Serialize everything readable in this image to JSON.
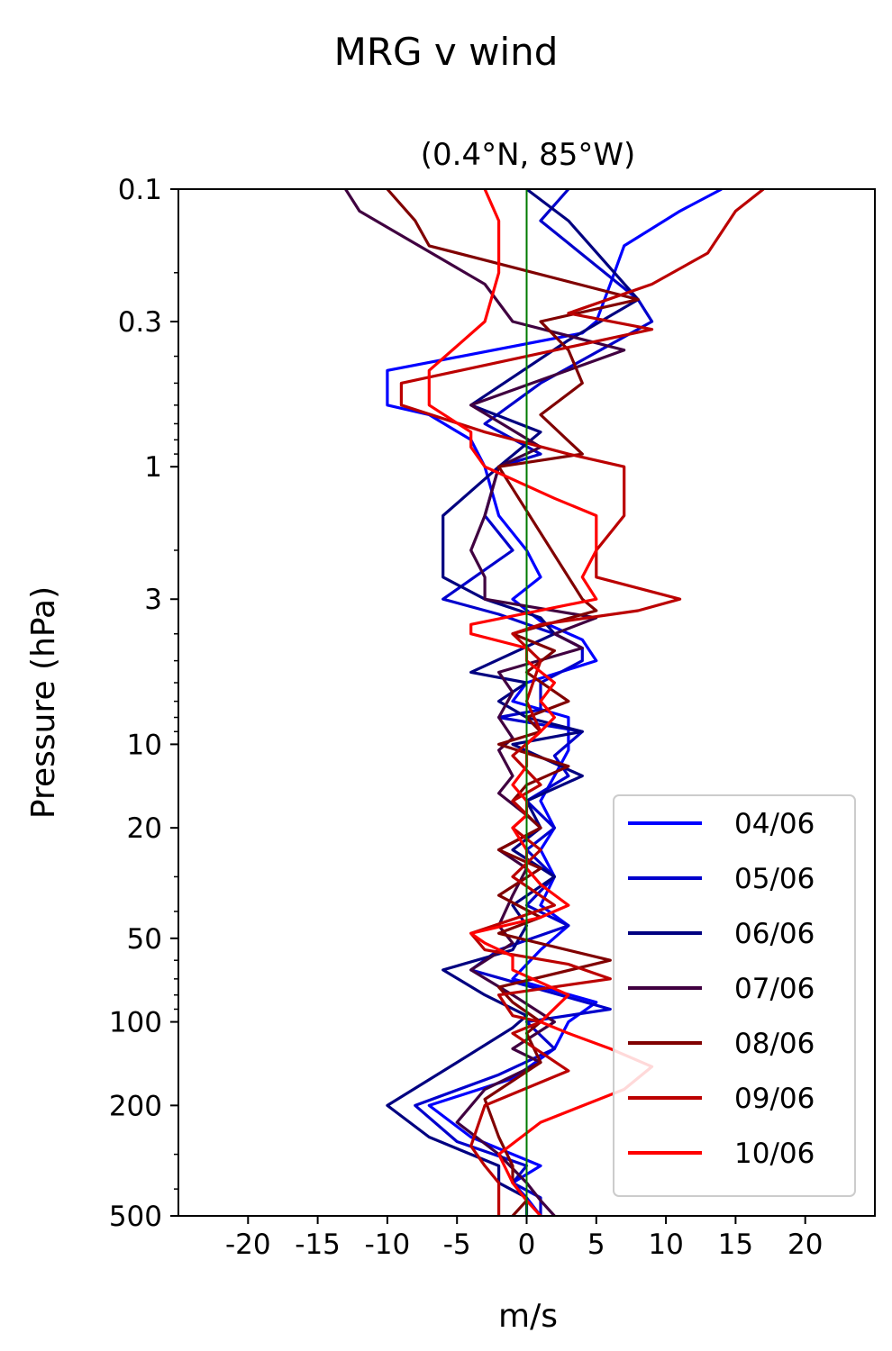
{
  "chart_data": {
    "type": "line",
    "title": "MRG v wind",
    "subtitle": "(0.4°N, 85°W)",
    "xlabel": "m/s",
    "ylabel": "Pressure (hPa)",
    "xlim": [
      -25,
      25
    ],
    "ylim": [
      500,
      0.1
    ],
    "yscale": "log",
    "x_ticks": [
      -20,
      -15,
      -10,
      -5,
      0,
      5,
      10,
      15,
      20
    ],
    "x_tick_labels": [
      "-20",
      "-15",
      "-10",
      "-5",
      "0",
      "5",
      "10",
      "15",
      "20"
    ],
    "y_ticks": [
      0.1,
      0.3,
      1,
      3,
      10,
      20,
      50,
      100,
      200,
      500
    ],
    "y_tick_labels": [
      "0.1",
      "0.3",
      "1",
      "3",
      "10",
      "20",
      "50",
      "100",
      "200",
      "500"
    ],
    "zero_line": {
      "x": 0,
      "color": "#007a00"
    },
    "legend": {
      "position": "lower-right"
    },
    "grid": false,
    "series": [
      {
        "name": "04/06",
        "color": "#0000ff",
        "points": [
          [
            14,
            0.1
          ],
          [
            11,
            0.12
          ],
          [
            7,
            0.16
          ],
          [
            6,
            0.22
          ],
          [
            5,
            0.3
          ],
          [
            4,
            0.33
          ],
          [
            -10,
            0.45
          ],
          [
            -10,
            0.6
          ],
          [
            -7,
            0.65
          ],
          [
            -4,
            0.8
          ],
          [
            -3,
            1.0
          ],
          [
            -2,
            1.5
          ],
          [
            0,
            2.0
          ],
          [
            1,
            2.5
          ],
          [
            -1,
            3.0
          ],
          [
            1,
            3.6
          ],
          [
            4,
            4.2
          ],
          [
            5,
            5.0
          ],
          [
            0,
            6.0
          ],
          [
            -1,
            7.0
          ],
          [
            3,
            8.0
          ],
          [
            3,
            10.5
          ],
          [
            2,
            13
          ],
          [
            1,
            16
          ],
          [
            2,
            20
          ],
          [
            1,
            24
          ],
          [
            2,
            30
          ],
          [
            1,
            38
          ],
          [
            3,
            45
          ],
          [
            1,
            55
          ],
          [
            -1,
            70
          ],
          [
            5,
            85
          ],
          [
            3,
            100
          ],
          [
            2,
            125
          ],
          [
            -1,
            160
          ],
          [
            -7,
            200
          ],
          [
            -4,
            260
          ],
          [
            1,
            330
          ],
          [
            -1,
            380
          ],
          [
            0,
            430
          ],
          [
            1,
            500
          ]
        ]
      },
      {
        "name": "05/06",
        "color": "#0000cc",
        "points": [
          [
            3,
            0.1
          ],
          [
            1,
            0.13
          ],
          [
            8,
            0.25
          ],
          [
            9,
            0.3
          ],
          [
            1,
            0.5
          ],
          [
            -3,
            0.7
          ],
          [
            1,
            0.9
          ],
          [
            -2,
            1.0
          ],
          [
            -3,
            1.5
          ],
          [
            -1,
            2.0
          ],
          [
            -6,
            3.0
          ],
          [
            -2,
            3.4
          ],
          [
            2,
            4.0
          ],
          [
            4,
            4.5
          ],
          [
            4,
            5.0
          ],
          [
            1,
            6.0
          ],
          [
            1,
            7.5
          ],
          [
            -2,
            8.0
          ],
          [
            4,
            9.0
          ],
          [
            2,
            11
          ],
          [
            3,
            13
          ],
          [
            0,
            16
          ],
          [
            2,
            20
          ],
          [
            0,
            24
          ],
          [
            2,
            30
          ],
          [
            0,
            38
          ],
          [
            3,
            45
          ],
          [
            -2,
            55
          ],
          [
            -4,
            65
          ],
          [
            6,
            90
          ],
          [
            0,
            100
          ],
          [
            2,
            125
          ],
          [
            -2,
            155
          ],
          [
            -8,
            200
          ],
          [
            -5,
            270
          ],
          [
            0,
            330
          ],
          [
            -1,
            380
          ],
          [
            1,
            430
          ],
          [
            1,
            500
          ]
        ]
      },
      {
        "name": "06/06",
        "color": "#000080",
        "points": [
          [
            0,
            0.1
          ],
          [
            3,
            0.13
          ],
          [
            8,
            0.25
          ],
          [
            3,
            0.35
          ],
          [
            -4,
            0.6
          ],
          [
            1,
            0.75
          ],
          [
            -2,
            1.0
          ],
          [
            -6,
            1.5
          ],
          [
            -6,
            2.5
          ],
          [
            -3,
            3.0
          ],
          [
            1,
            3.5
          ],
          [
            2,
            4.0
          ],
          [
            -4,
            5.5
          ],
          [
            0,
            6.0
          ],
          [
            -2,
            7.0
          ],
          [
            0,
            8.0
          ],
          [
            4,
            9.0
          ],
          [
            -1,
            10
          ],
          [
            4,
            13
          ],
          [
            0,
            16
          ],
          [
            1,
            20
          ],
          [
            -1,
            24
          ],
          [
            2,
            30
          ],
          [
            -1,
            38
          ],
          [
            0,
            45
          ],
          [
            -1,
            55
          ],
          [
            -6,
            65
          ],
          [
            -3,
            80
          ],
          [
            0,
            95
          ],
          [
            -1,
            105
          ],
          [
            -5,
            140
          ],
          [
            -10,
            200
          ],
          [
            -7,
            260
          ],
          [
            -2,
            330
          ],
          [
            -2,
            380
          ],
          [
            0,
            430
          ],
          [
            0,
            500
          ]
        ]
      },
      {
        "name": "07/06",
        "color": "#400040",
        "points": [
          [
            -13,
            0.1
          ],
          [
            -12,
            0.12
          ],
          [
            -3,
            0.22
          ],
          [
            -1,
            0.3
          ],
          [
            7,
            0.38
          ],
          [
            -4,
            0.6
          ],
          [
            1,
            0.85
          ],
          [
            -2,
            1.0
          ],
          [
            -3,
            1.5
          ],
          [
            -4,
            2.0
          ],
          [
            -3,
            2.5
          ],
          [
            -3,
            3.0
          ],
          [
            5,
            3.5
          ],
          [
            2,
            4.0
          ],
          [
            4,
            4.5
          ],
          [
            -2,
            5.5
          ],
          [
            -1,
            6.5
          ],
          [
            -2,
            8.0
          ],
          [
            -1,
            9.5
          ],
          [
            -2,
            10.5
          ],
          [
            -1,
            13
          ],
          [
            -2,
            15
          ],
          [
            0,
            18
          ],
          [
            1,
            20
          ],
          [
            -2,
            24
          ],
          [
            0,
            28
          ],
          [
            -1,
            35
          ],
          [
            -2,
            45
          ],
          [
            -1,
            52
          ],
          [
            -4,
            65
          ],
          [
            -1,
            80
          ],
          [
            2,
            100
          ],
          [
            -1,
            125
          ],
          [
            1,
            140
          ],
          [
            -3,
            175
          ],
          [
            -5,
            230
          ],
          [
            -2,
            300
          ],
          [
            0,
            380
          ],
          [
            1,
            440
          ],
          [
            2,
            500
          ]
        ]
      },
      {
        "name": "08/06",
        "color": "#800000",
        "points": [
          [
            -10,
            0.1
          ],
          [
            -8,
            0.13
          ],
          [
            -7,
            0.16
          ],
          [
            8,
            0.25
          ],
          [
            1,
            0.3
          ],
          [
            3,
            0.38
          ],
          [
            4,
            0.5
          ],
          [
            1,
            0.65
          ],
          [
            4,
            0.9
          ],
          [
            -2,
            1.0
          ],
          [
            4,
            3.0
          ],
          [
            5,
            3.3
          ],
          [
            -1,
            4.0
          ],
          [
            2,
            4.6
          ],
          [
            0,
            5.5
          ],
          [
            3,
            7.0
          ],
          [
            0,
            8.0
          ],
          [
            1,
            9.0
          ],
          [
            -2,
            10
          ],
          [
            3,
            12
          ],
          [
            0,
            14
          ],
          [
            -1,
            16
          ],
          [
            1,
            20
          ],
          [
            -2,
            24
          ],
          [
            1,
            28
          ],
          [
            -2,
            35
          ],
          [
            1,
            42
          ],
          [
            -2,
            48
          ],
          [
            6,
            60
          ],
          [
            -2,
            75
          ],
          [
            -1,
            85
          ],
          [
            1,
            100
          ],
          [
            0,
            110
          ],
          [
            1,
            140
          ],
          [
            -3,
            190
          ],
          [
            -2,
            260
          ],
          [
            -1,
            330
          ],
          [
            -1,
            380
          ],
          [
            0,
            440
          ],
          [
            -1,
            500
          ]
        ]
      },
      {
        "name": "09/06",
        "color": "#bb0000",
        "points": [
          [
            17,
            0.1
          ],
          [
            15,
            0.12
          ],
          [
            13,
            0.17
          ],
          [
            9,
            0.22
          ],
          [
            3,
            0.28
          ],
          [
            9,
            0.32
          ],
          [
            -9,
            0.5
          ],
          [
            -9,
            0.6
          ],
          [
            -3,
            0.75
          ],
          [
            3,
            0.9
          ],
          [
            7,
            1.0
          ],
          [
            7,
            1.5
          ],
          [
            5,
            2.0
          ],
          [
            5,
            2.5
          ],
          [
            11,
            3.0
          ],
          [
            8,
            3.3
          ],
          [
            1,
            3.7
          ],
          [
            -1,
            4.0
          ],
          [
            1,
            5.0
          ],
          [
            0,
            7.0
          ],
          [
            1,
            9.0
          ],
          [
            -1,
            11
          ],
          [
            1,
            14
          ],
          [
            -1,
            16
          ],
          [
            0,
            18
          ],
          [
            -1,
            20
          ],
          [
            1,
            24
          ],
          [
            -1,
            30
          ],
          [
            2,
            38
          ],
          [
            -4,
            48
          ],
          [
            -3,
            55
          ],
          [
            3,
            62
          ],
          [
            6,
            70
          ],
          [
            -2,
            80
          ],
          [
            -1,
            95
          ],
          [
            1,
            100
          ],
          [
            -1,
            110
          ],
          [
            3,
            150
          ],
          [
            -3,
            200
          ],
          [
            -4,
            280
          ],
          [
            -3,
            330
          ],
          [
            -2,
            380
          ],
          [
            -2,
            440
          ],
          [
            -2,
            500
          ]
        ]
      },
      {
        "name": "10/06",
        "color": "#ff0000",
        "points": [
          [
            -3,
            0.1
          ],
          [
            -2,
            0.13
          ],
          [
            -2,
            0.2
          ],
          [
            -3,
            0.3
          ],
          [
            -7,
            0.45
          ],
          [
            -7,
            0.6
          ],
          [
            -4,
            0.75
          ],
          [
            -4,
            0.85
          ],
          [
            -3,
            1.0
          ],
          [
            2,
            1.3
          ],
          [
            5,
            1.5
          ],
          [
            5,
            2.0
          ],
          [
            4,
            2.5
          ],
          [
            5,
            3.0
          ],
          [
            -4,
            3.7
          ],
          [
            -4,
            4.0
          ],
          [
            0,
            4.5
          ],
          [
            0,
            5.0
          ],
          [
            2,
            6.0
          ],
          [
            1,
            7.0
          ],
          [
            2,
            8.0
          ],
          [
            1,
            9.0
          ],
          [
            0,
            10
          ],
          [
            0,
            12
          ],
          [
            -1,
            14
          ],
          [
            0,
            16
          ],
          [
            0,
            18
          ],
          [
            -1,
            20
          ],
          [
            0,
            24
          ],
          [
            0,
            28
          ],
          [
            1,
            32
          ],
          [
            3,
            38
          ],
          [
            1,
            42
          ],
          [
            -4,
            48
          ],
          [
            -3,
            52
          ],
          [
            -1,
            58
          ],
          [
            -1,
            65
          ],
          [
            3,
            80
          ],
          [
            1,
            100
          ],
          [
            3,
            110
          ],
          [
            6,
            125
          ],
          [
            9,
            145
          ],
          [
            7,
            175
          ],
          [
            1,
            230
          ],
          [
            -2,
            300
          ],
          [
            -1,
            380
          ],
          [
            0,
            440
          ],
          [
            1,
            500
          ]
        ]
      }
    ]
  }
}
